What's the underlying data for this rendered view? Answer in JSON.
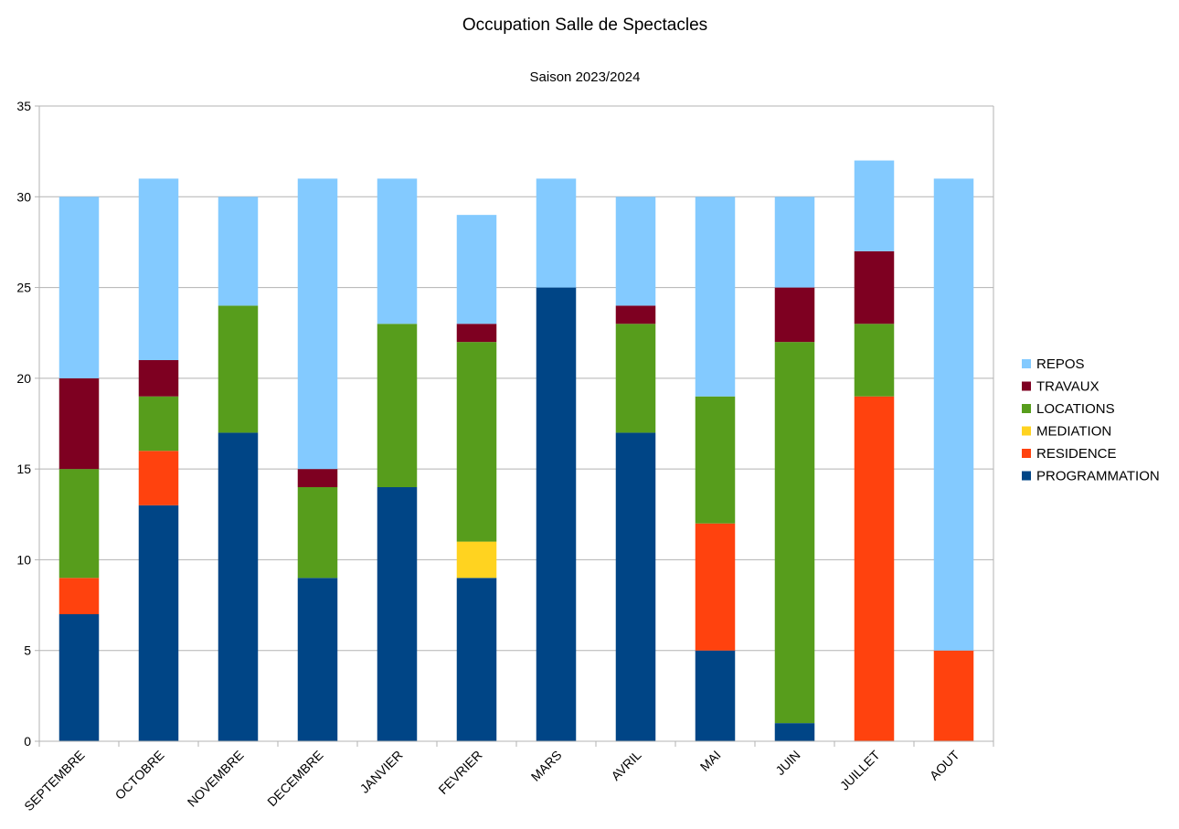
{
  "chart_data": {
    "type": "bar",
    "stacked": true,
    "title": "Occupation Salle de Spectacles",
    "subtitle": "Saison 2023/2024",
    "xlabel": "",
    "ylabel": "",
    "ylim": [
      0,
      35
    ],
    "yticks": [
      0,
      5,
      10,
      15,
      20,
      25,
      30,
      35
    ],
    "grid": true,
    "legend_position": "right",
    "categories": [
      "SEPTEMBRE",
      "OCTOBRE",
      "NOVEMBRE",
      "DECEMBRE",
      "JANVIER",
      "FEVRIER",
      "MARS",
      "AVRIL",
      "MAI",
      "JUIN",
      "JUILLET",
      "AOUT"
    ],
    "series": [
      {
        "name": "PROGRAMMATION",
        "color": "#004586",
        "values": [
          7,
          13,
          17,
          9,
          14,
          9,
          25,
          17,
          5,
          1,
          0,
          0
        ]
      },
      {
        "name": "RESIDENCE",
        "color": "#ff420e",
        "values": [
          2,
          3,
          0,
          0,
          0,
          0,
          0,
          0,
          7,
          0,
          19,
          5
        ]
      },
      {
        "name": "MEDIATION",
        "color": "#ffd320",
        "values": [
          0,
          0,
          0,
          0,
          0,
          2,
          0,
          0,
          0,
          0,
          0,
          0
        ]
      },
      {
        "name": "LOCATIONS",
        "color": "#579d1c",
        "values": [
          6,
          3,
          7,
          5,
          9,
          11,
          0,
          6,
          7,
          21,
          4,
          0
        ]
      },
      {
        "name": "TRAVAUX",
        "color": "#7e0021",
        "values": [
          5,
          2,
          0,
          1,
          0,
          1,
          0,
          1,
          0,
          3,
          4,
          0
        ]
      },
      {
        "name": "REPOS",
        "color": "#83caff",
        "values": [
          10,
          10,
          6,
          16,
          8,
          6,
          6,
          6,
          11,
          5,
          5,
          26
        ]
      }
    ]
  }
}
